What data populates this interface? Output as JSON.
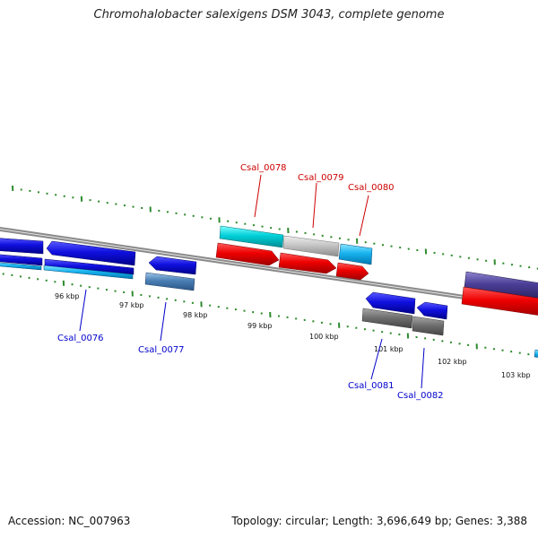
{
  "title": "Chromohalobacter salexigens DSM 3043, complete genome",
  "footer": {
    "accession": "Accession: NC_007963",
    "stats": "Topology: circular; Length: 3,696,649 bp; Genes: 3,388"
  },
  "colors": {
    "backbone": "#8a8a8a",
    "ticks": "#2e8b2e",
    "label_top": "#cc0000",
    "label_bottom": "#0000cc"
  },
  "scale_labels": [
    "96 kbp",
    "97 kbp",
    "98 kbp",
    "99 kbp",
    "100 kbp",
    "101 kbp",
    "102 kbp",
    "103 kbp"
  ],
  "genes": [
    {
      "name": "Csal_0076",
      "label": "Csal_0076",
      "side": "bottom",
      "color": "#1a1ad8"
    },
    {
      "name": "Csal_0077",
      "label": "Csal_0077",
      "side": "bottom",
      "color": "#1a1ad8"
    },
    {
      "name": "Csal_0078",
      "label": "Csal_0078",
      "side": "top",
      "color": "#ee1111"
    },
    {
      "name": "Csal_0079",
      "label": "Csal_0079",
      "side": "top",
      "color": "#ee1111"
    },
    {
      "name": "Csal_0080",
      "label": "Csal_0080",
      "side": "top",
      "color": "#ee1111"
    },
    {
      "name": "Csal_0081",
      "label": "Csal_0081",
      "side": "bottom",
      "color": "#1a1ad8"
    },
    {
      "name": "Csal_0082",
      "label": "Csal_0082",
      "side": "bottom",
      "color": "#1a1ad8"
    }
  ]
}
